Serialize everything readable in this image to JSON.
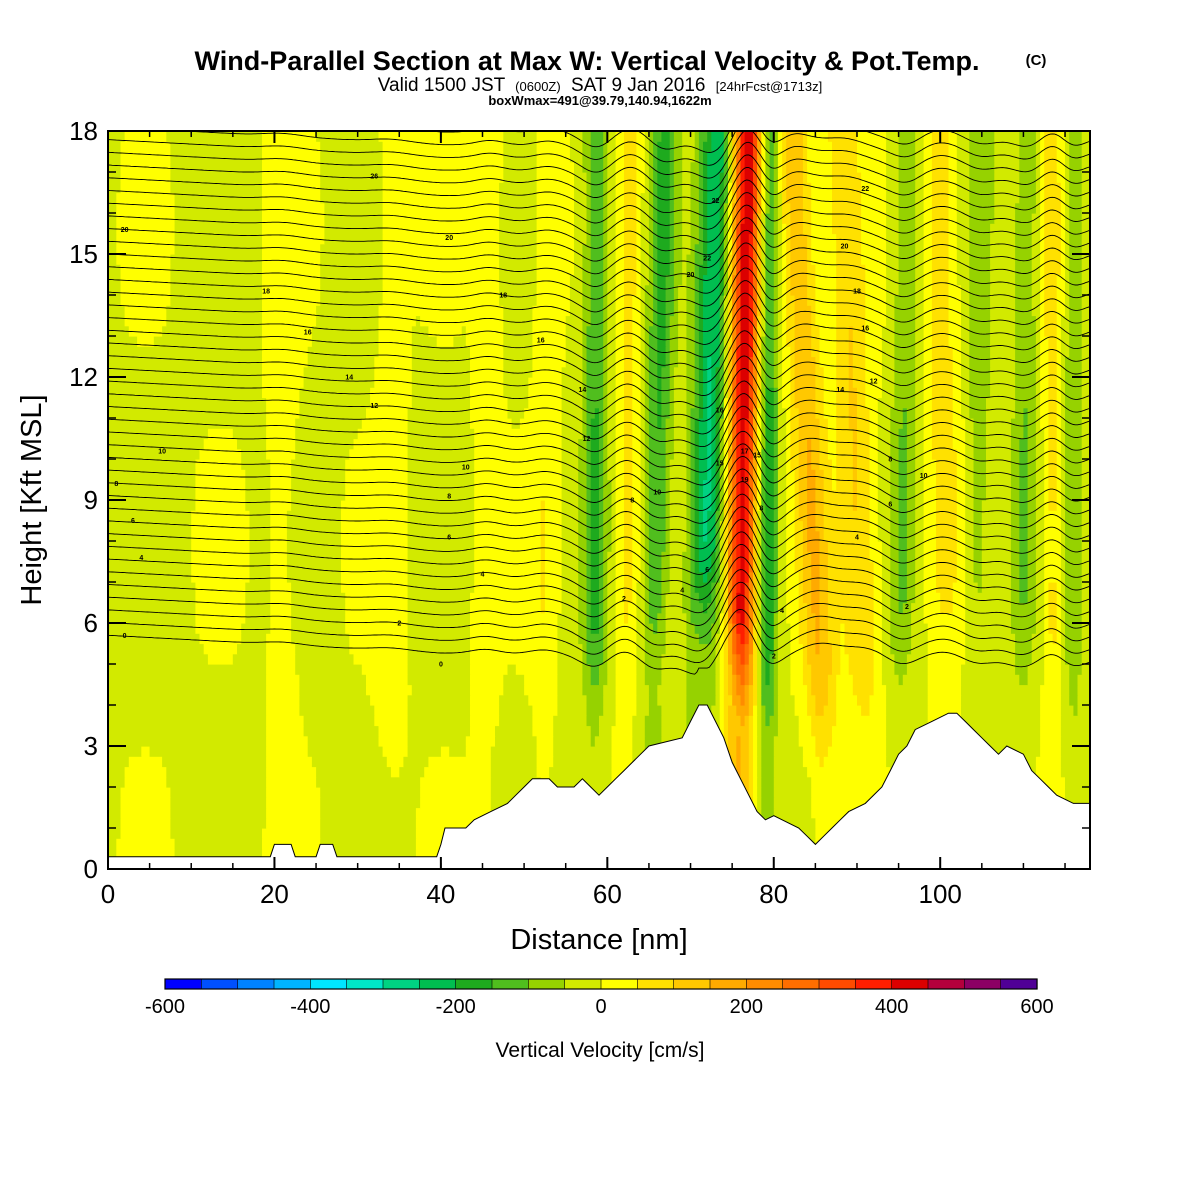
{
  "title": {
    "main": "Wind-Parallel Section at Max W: Vertical Velocity & Pot.Temp.",
    "copyright": "(C)",
    "line2_a": "Valid 1500 JST",
    "line2_b": "(0600Z)",
    "line2_c": "SAT 9 Jan 2016",
    "line2_d": "[24hrFcst@1713z]",
    "line3": "boxWmax=491@39.79,140.94,1622m"
  },
  "chart_data": {
    "type": "heatmap",
    "xlabel": "Distance [nm]",
    "ylabel": "Height [Kft MSL]",
    "xlim": [
      0,
      118
    ],
    "ylim": [
      0,
      18
    ],
    "x_ticks": [
      0,
      20,
      40,
      60,
      80,
      100
    ],
    "y_ticks": [
      0,
      3,
      6,
      9,
      12,
      15,
      18
    ],
    "colorbar": {
      "title": "Vertical Velocity [cm/s]",
      "range": [
        -600,
        600
      ],
      "tick_values": [
        -600,
        -400,
        -200,
        0,
        200,
        400,
        600
      ],
      "colors": [
        "#0000ff",
        "#0050ff",
        "#0082ff",
        "#00b4ff",
        "#00e6ff",
        "#00e6c8",
        "#00d282",
        "#00be50",
        "#1eaa1e",
        "#50be1e",
        "#96d200",
        "#d2ea00",
        "#ffff00",
        "#ffe100",
        "#ffc800",
        "#ffaa00",
        "#ff8c00",
        "#ff6e00",
        "#ff4b00",
        "#ff1e00",
        "#dc0000",
        "#b4003c",
        "#8c0064",
        "#500096"
      ]
    },
    "terrain_kft": [
      [
        0,
        0.3
      ],
      [
        19.5,
        0.3
      ],
      [
        20,
        0.6
      ],
      [
        22,
        0.6
      ],
      [
        22.5,
        0.3
      ],
      [
        25,
        0.3
      ],
      [
        25.5,
        0.6
      ],
      [
        27,
        0.6
      ],
      [
        27.5,
        0.3
      ],
      [
        39.5,
        0.3
      ],
      [
        40,
        0.6
      ],
      [
        40.5,
        1.0
      ],
      [
        43,
        1.0
      ],
      [
        44,
        1.2
      ],
      [
        46,
        1.4
      ],
      [
        48,
        1.6
      ],
      [
        49,
        1.8
      ],
      [
        50,
        2.0
      ],
      [
        51,
        2.2
      ],
      [
        53,
        2.2
      ],
      [
        54,
        2.0
      ],
      [
        56,
        2.0
      ],
      [
        57,
        2.2
      ],
      [
        58,
        2.0
      ],
      [
        59,
        1.8
      ],
      [
        60,
        2.0
      ],
      [
        61,
        2.2
      ],
      [
        62,
        2.4
      ],
      [
        63,
        2.6
      ],
      [
        64,
        2.8
      ],
      [
        65,
        3.0
      ],
      [
        69,
        3.2
      ],
      [
        70,
        3.6
      ],
      [
        71,
        4.0
      ],
      [
        72,
        4.0
      ],
      [
        73,
        3.6
      ],
      [
        74,
        3.2
      ],
      [
        75,
        2.6
      ],
      [
        76,
        2.2
      ],
      [
        77,
        1.8
      ],
      [
        78,
        1.4
      ],
      [
        79,
        1.2
      ],
      [
        80,
        1.3
      ],
      [
        81,
        1.2
      ],
      [
        83,
        1.0
      ],
      [
        84,
        0.8
      ],
      [
        85,
        0.6
      ],
      [
        86,
        0.8
      ],
      [
        87,
        1.0
      ],
      [
        88,
        1.2
      ],
      [
        89,
        1.4
      ],
      [
        91,
        1.6
      ],
      [
        93,
        2.0
      ],
      [
        94,
        2.4
      ],
      [
        95,
        2.8
      ],
      [
        96,
        3.0
      ],
      [
        97,
        3.4
      ],
      [
        99,
        3.6
      ],
      [
        101,
        3.8
      ],
      [
        102,
        3.8
      ],
      [
        103,
        3.6
      ],
      [
        104,
        3.4
      ],
      [
        105,
        3.2
      ],
      [
        106,
        3.0
      ],
      [
        107,
        2.8
      ],
      [
        108,
        3.0
      ],
      [
        110,
        2.8
      ],
      [
        111,
        2.4
      ],
      [
        112,
        2.2
      ],
      [
        113,
        2.0
      ],
      [
        114,
        1.8
      ],
      [
        116,
        1.6
      ],
      [
        117,
        1.6
      ],
      [
        118,
        1.6
      ]
    ],
    "w_features": [
      {
        "x": 76.2,
        "w": 440,
        "tilt": 0.08,
        "width_nm": 1.9
      },
      {
        "x": 72.0,
        "w": -250,
        "tilt": 0.15,
        "width_nm": 2.1
      },
      {
        "x": 79.2,
        "w": -190,
        "tilt": 0.02,
        "width_nm": 1.3
      },
      {
        "x": 84.5,
        "w": 150,
        "tilt": -0.25,
        "width_nm": 2.0
      },
      {
        "x": 90.0,
        "w": 110,
        "tilt": -0.2,
        "width_nm": 2.2
      },
      {
        "x": 66.0,
        "w": -150,
        "tilt": 0.1,
        "width_nm": 1.6
      },
      {
        "x": 58.5,
        "w": -140,
        "tilt": 0.02,
        "width_nm": 1.5
      },
      {
        "x": 62.5,
        "w": 70,
        "tilt": 0.05,
        "width_nm": 1.5
      },
      {
        "x": 95.5,
        "w": -90,
        "tilt": 0.05,
        "width_nm": 1.5
      },
      {
        "x": 100.5,
        "w": 80,
        "tilt": -0.05,
        "width_nm": 2.0
      },
      {
        "x": 104.5,
        "w": -70,
        "tilt": 0.05,
        "width_nm": 1.6
      },
      {
        "x": 110.0,
        "w": -90,
        "tilt": 0.05,
        "width_nm": 1.5
      },
      {
        "x": 113.5,
        "w": 80,
        "tilt": 0.0,
        "width_nm": 1.2
      },
      {
        "x": 116.0,
        "w": -80,
        "tilt": 0.0,
        "width_nm": 1.2
      },
      {
        "x": 45.5,
        "w": 50,
        "tilt": 0.05,
        "width_nm": 1.5
      },
      {
        "x": 52.5,
        "w": 50,
        "tilt": 0.05,
        "width_nm": 1.5
      },
      {
        "x": 21.0,
        "w": 30,
        "tilt": 0.0,
        "width_nm": 2.0
      },
      {
        "x": 34.0,
        "w": 30,
        "tilt": 0.0,
        "width_nm": 2.0
      }
    ],
    "theta_contours": {
      "start": 0,
      "step": 1,
      "count": 42,
      "base_height_kft": 5.35,
      "spacing_kft": 0.31,
      "left_rise_kft": 0.35,
      "labeled_values": [
        0,
        2,
        4,
        6,
        8,
        10,
        12,
        14,
        16,
        18,
        20
      ]
    },
    "contour_labels": [
      {
        "text": "0",
        "x": 2.0,
        "y": 5.7
      },
      {
        "text": "0",
        "x": 40.0,
        "y": 5.0
      },
      {
        "text": "2",
        "x": 35.0,
        "y": 6.0
      },
      {
        "text": "2",
        "x": 62.0,
        "y": 6.6
      },
      {
        "text": "2",
        "x": 80.0,
        "y": 5.2
      },
      {
        "text": "2",
        "x": 96.0,
        "y": 6.4
      },
      {
        "text": "4",
        "x": 4.0,
        "y": 7.6
      },
      {
        "text": "4",
        "x": 45.0,
        "y": 7.2
      },
      {
        "text": "4",
        "x": 69.0,
        "y": 6.8
      },
      {
        "text": "4",
        "x": 90.0,
        "y": 8.1
      },
      {
        "text": "4",
        "x": 81.0,
        "y": 6.3
      },
      {
        "text": "6",
        "x": 3.0,
        "y": 8.5
      },
      {
        "text": "6",
        "x": 41.0,
        "y": 8.1
      },
      {
        "text": "6",
        "x": 72.0,
        "y": 7.3
      },
      {
        "text": "6",
        "x": 94.0,
        "y": 8.9
      },
      {
        "text": "8",
        "x": 1.0,
        "y": 9.4
      },
      {
        "text": "8",
        "x": 41.0,
        "y": 9.1
      },
      {
        "text": "8",
        "x": 63.0,
        "y": 9.0
      },
      {
        "text": "8",
        "x": 78.5,
        "y": 8.8
      },
      {
        "text": "8",
        "x": 94.0,
        "y": 10.0
      },
      {
        "text": "10",
        "x": 6.5,
        "y": 10.2
      },
      {
        "text": "10",
        "x": 43.0,
        "y": 9.8
      },
      {
        "text": "10",
        "x": 66.0,
        "y": 9.2
      },
      {
        "text": "10",
        "x": 98.0,
        "y": 9.6
      },
      {
        "text": "12",
        "x": 32.0,
        "y": 11.3
      },
      {
        "text": "12",
        "x": 57.5,
        "y": 10.5
      },
      {
        "text": "12",
        "x": 92.0,
        "y": 11.9
      },
      {
        "text": "14",
        "x": 29.0,
        "y": 12.0
      },
      {
        "text": "14",
        "x": 57.0,
        "y": 11.7
      },
      {
        "text": "14",
        "x": 88.0,
        "y": 11.7
      },
      {
        "text": "15",
        "x": 73.5,
        "y": 9.9
      },
      {
        "text": "15",
        "x": 78.0,
        "y": 10.1
      },
      {
        "text": "16",
        "x": 24.0,
        "y": 13.1
      },
      {
        "text": "16",
        "x": 52.0,
        "y": 12.9
      },
      {
        "text": "16",
        "x": 73.5,
        "y": 11.2
      },
      {
        "text": "16",
        "x": 91.0,
        "y": 13.2
      },
      {
        "text": "17",
        "x": 76.5,
        "y": 10.2
      },
      {
        "text": "18",
        "x": 19.0,
        "y": 14.1
      },
      {
        "text": "18",
        "x": 47.5,
        "y": 14.0
      },
      {
        "text": "18",
        "x": 90.0,
        "y": 14.1
      },
      {
        "text": "19",
        "x": 76.5,
        "y": 9.5
      },
      {
        "text": "20",
        "x": 2.0,
        "y": 15.6
      },
      {
        "text": "20",
        "x": 41.0,
        "y": 15.4
      },
      {
        "text": "20",
        "x": 70.0,
        "y": 14.5
      },
      {
        "text": "20",
        "x": 88.5,
        "y": 15.2
      },
      {
        "text": "22",
        "x": 72.0,
        "y": 14.9
      },
      {
        "text": "22",
        "x": 91.0,
        "y": 16.6
      },
      {
        "text": "22",
        "x": 73.0,
        "y": 16.3
      },
      {
        "text": "26",
        "x": 32.0,
        "y": 16.9
      }
    ]
  }
}
